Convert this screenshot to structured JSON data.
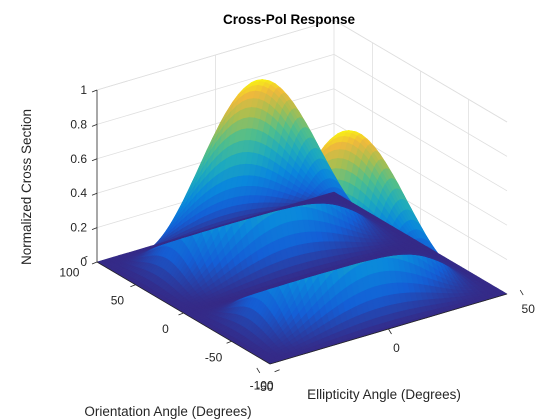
{
  "chart_data": {
    "type": "surface",
    "title": "Cross-Pol Response",
    "xlabel": "Ellipticity Angle (Degrees)",
    "ylabel": "Orientation Angle (Degrees)",
    "zlabel": "Normalized Cross Section",
    "xlim": [
      -45,
      45
    ],
    "ylim": [
      -90,
      90
    ],
    "zlim": [
      0,
      1
    ],
    "x_ticks": [
      -50,
      0,
      50
    ],
    "y_ticks": [
      -100,
      -50,
      0,
      50,
      100
    ],
    "z_ticks": [
      0,
      0.2,
      0.4,
      0.6,
      0.8,
      1
    ],
    "x_tick_labels": [
      "-50",
      "0",
      "50"
    ],
    "y_tick_labels": [
      "-100",
      "-50",
      "0",
      "50",
      "100"
    ],
    "z_tick_labels": [
      "0",
      "0.2",
      "0.4",
      "0.6",
      "0.8",
      "1"
    ],
    "function": "z = cos(2*ellipticity)^2 * sin(2*orientation)^2",
    "peaks": [
      {
        "ellipticity": 0,
        "orientation": 45,
        "value": 1
      },
      {
        "ellipticity": 0,
        "orientation": -45,
        "value": 1
      }
    ],
    "grid": true,
    "colormap": "parula"
  }
}
